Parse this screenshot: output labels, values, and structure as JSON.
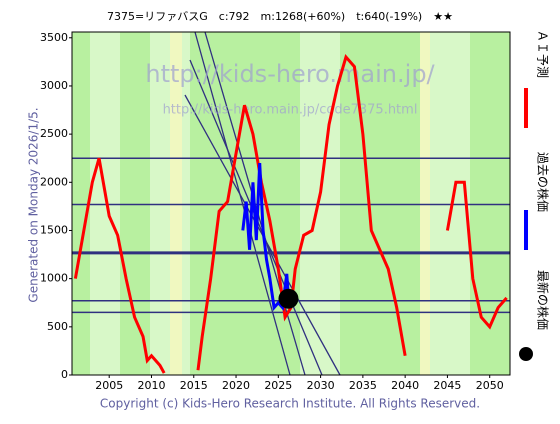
{
  "chart_data": {
    "type": "line",
    "title": "7375=リファバスG　c:792　m:1268(+60%)　t:640(-19%)　★★",
    "side_note": "Generated on Monday 2026/1/5.",
    "footer": "Copyright (c) Kids-Hero Research Institute. All Rights Reserved.",
    "watermarks": [
      "http://kids-hero.main.jp/",
      "http://kids-hero.main.jp/code7375.html"
    ],
    "xlim": [
      2000.6,
      2052.4
    ],
    "xticks": [
      2005,
      2010,
      2015,
      2020,
      2025,
      2030,
      2035,
      2040,
      2045,
      2050
    ],
    "ylim": [
      0,
      3560
    ],
    "yticks": [
      0,
      500,
      1000,
      1500,
      2000,
      2500,
      3000,
      3500
    ],
    "levels": [
      2250,
      1770,
      1268,
      770,
      650
    ],
    "series": [
      {
        "name": "ＡＩ予測",
        "color": "#ff0000",
        "x": [
          2001,
          2002,
          2003,
          2003.8,
          2004.5,
          2005,
          2006,
          2007,
          2008,
          2009,
          2009.5,
          2010,
          2011,
          2011.5,
          2013,
          2015.5,
          2016,
          2017,
          2018,
          2019,
          2020,
          2021,
          2022,
          2023,
          2024,
          2025,
          2025.8,
          2026.5,
          2027,
          2028,
          2029,
          2030,
          2031,
          2032,
          2033,
          2034,
          2035,
          2036,
          2037,
          2038,
          2039,
          2040,
          2042,
          2045,
          2046,
          2047,
          2047.5,
          2048,
          2049,
          2050,
          2051,
          2052
        ],
        "values": [
          1000,
          1500,
          2000,
          2250,
          1900,
          1650,
          1450,
          1000,
          600,
          400,
          150,
          200,
          100,
          20,
          null,
          50,
          400,
          1000,
          1700,
          1800,
          2300,
          2800,
          2500,
          2000,
          1600,
          1100,
          600,
          700,
          1100,
          1450,
          1500,
          1900,
          2600,
          3000,
          3300,
          3200,
          2500,
          1500,
          1300,
          1100,
          700,
          200,
          null,
          1500,
          2000,
          2000,
          1500,
          1000,
          600,
          500,
          700,
          800
        ]
      },
      {
        "name": "過去の株価",
        "color": "#0000ff",
        "x": [
          2020.8,
          2021.2,
          2021.6,
          2022,
          2022.4,
          2022.8,
          2023.2,
          2023.6,
          2024,
          2024.5,
          2025,
          2025.5,
          2026,
          2026.2
        ],
        "values": [
          1500,
          1800,
          1300,
          2000,
          1400,
          2200,
          1500,
          1200,
          1000,
          700,
          750,
          700,
          1050,
          792
        ]
      },
      {
        "name": "最新の株価",
        "color": "#000000",
        "x": [
          2026.2
        ],
        "values": [
          792
        ]
      }
    ]
  }
}
